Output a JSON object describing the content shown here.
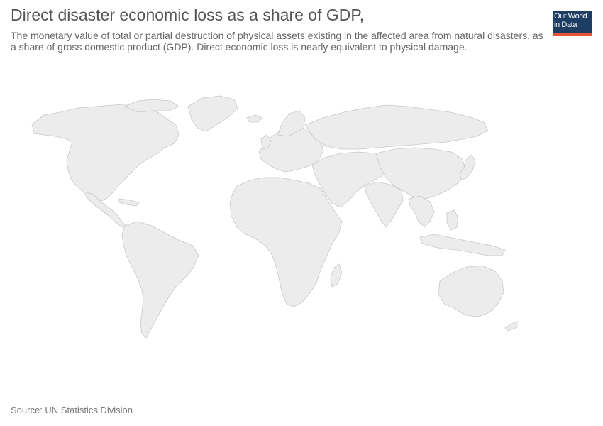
{
  "header": {
    "title": "Direct disaster economic loss as a share of GDP,",
    "subtitle": "The monetary value of total or partial destruction of physical assets existing in the affected area from natural disasters, as a share of gross domestic product (GDP). Direct economic loss is nearly equivalent to physical damage."
  },
  "logo": {
    "line1": "Our World",
    "line2": "in Data",
    "bg_color": "#1d3d63",
    "accent_color": "#e5543a"
  },
  "map": {
    "type": "choropleth world map",
    "fill_color": "#ececec",
    "border_color": "#c8c8c8"
  },
  "footer": {
    "source": "Source: UN Statistics Division"
  }
}
